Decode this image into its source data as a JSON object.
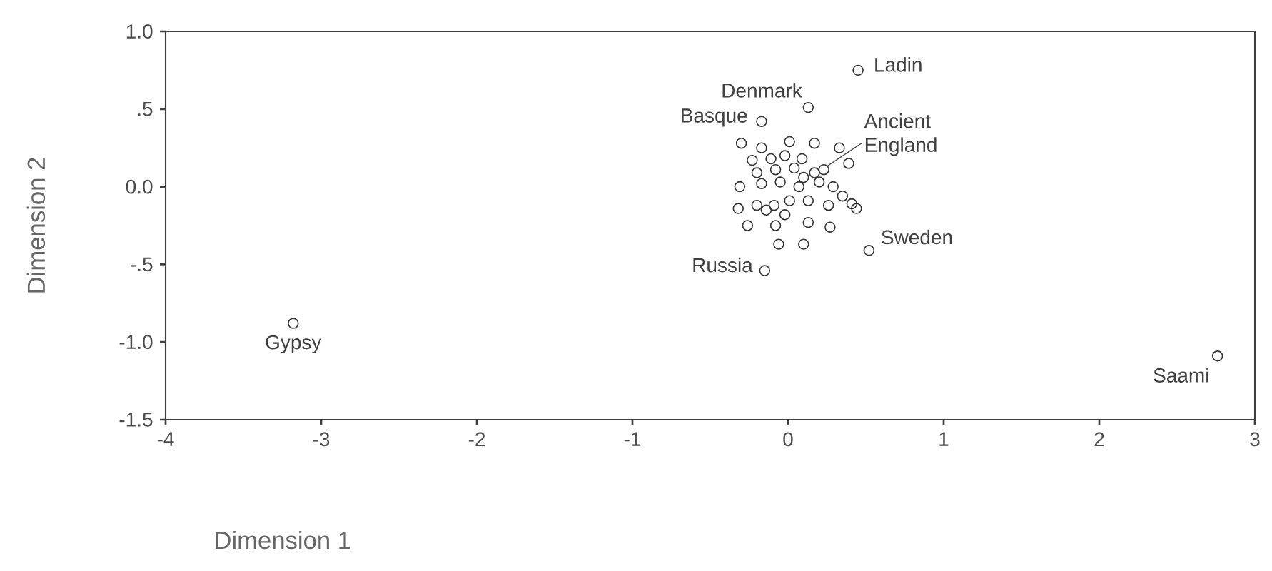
{
  "chart_data": {
    "type": "scatter",
    "xlabel": "Dimension 1",
    "ylabel": "Dimension 2",
    "xlim": [
      -4,
      3
    ],
    "xticks": [
      -4,
      -3,
      -2,
      -1,
      0,
      1,
      2,
      3
    ],
    "ylim": [
      -1.5,
      1.0
    ],
    "yticks": [
      {
        "value": -1.5,
        "label": "-1.5"
      },
      {
        "value": -1.0,
        "label": "-1.0"
      },
      {
        "value": -0.5,
        "label": "-.5"
      },
      {
        "value": 0.0,
        "label": "0.0"
      },
      {
        "value": 0.5,
        "label": ".5"
      },
      {
        "value": 1.0,
        "label": "1.0"
      }
    ],
    "grid": false,
    "marker": "circle",
    "series": [
      {
        "color": "#333333",
        "x": [
          0.45,
          0.13,
          -0.17,
          0.23,
          0.52,
          -0.15,
          -3.18,
          2.76,
          -0.3,
          -0.17,
          0.01,
          0.17,
          0.33,
          0.39,
          -0.23,
          -0.11,
          -0.02,
          0.09,
          -0.2,
          -0.08,
          0.04,
          0.17,
          -0.31,
          -0.17,
          -0.05,
          0.07,
          0.2,
          0.29,
          0.35,
          0.41,
          0.44,
          -0.32,
          -0.2,
          -0.09,
          0.01,
          0.13,
          0.26,
          -0.26,
          -0.08,
          0.13,
          0.27,
          -0.06,
          0.1,
          -0.14,
          -0.02,
          0.1
        ],
        "values": [
          0.75,
          0.51,
          0.42,
          0.11,
          -0.41,
          -0.54,
          -0.88,
          -1.09,
          0.28,
          0.25,
          0.29,
          0.28,
          0.25,
          0.15,
          0.17,
          0.18,
          0.2,
          0.18,
          0.09,
          0.11,
          0.12,
          0.09,
          0.0,
          0.02,
          0.03,
          0.0,
          0.03,
          0.0,
          -0.06,
          -0.11,
          -0.14,
          -0.14,
          -0.12,
          -0.12,
          -0.09,
          -0.09,
          -0.12,
          -0.25,
          -0.25,
          -0.23,
          -0.26,
          -0.37,
          -0.37,
          -0.15,
          -0.18,
          0.06
        ]
      }
    ],
    "annotations": [
      {
        "text": "Ladin",
        "x": 0.45,
        "y": 0.75
      },
      {
        "text": "Denmark",
        "x": 0.13,
        "y": 0.51
      },
      {
        "text": "Basque",
        "x": -0.17,
        "y": 0.42
      },
      {
        "text": "Ancient England",
        "x": 0.23,
        "y": 0.11
      },
      {
        "text": "Sweden",
        "x": 0.52,
        "y": -0.41
      },
      {
        "text": "Russia",
        "x": -0.15,
        "y": -0.54
      },
      {
        "text": "Gypsy",
        "x": -3.18,
        "y": -0.88
      },
      {
        "text": "Saami",
        "x": 2.76,
        "y": -1.09
      }
    ]
  }
}
